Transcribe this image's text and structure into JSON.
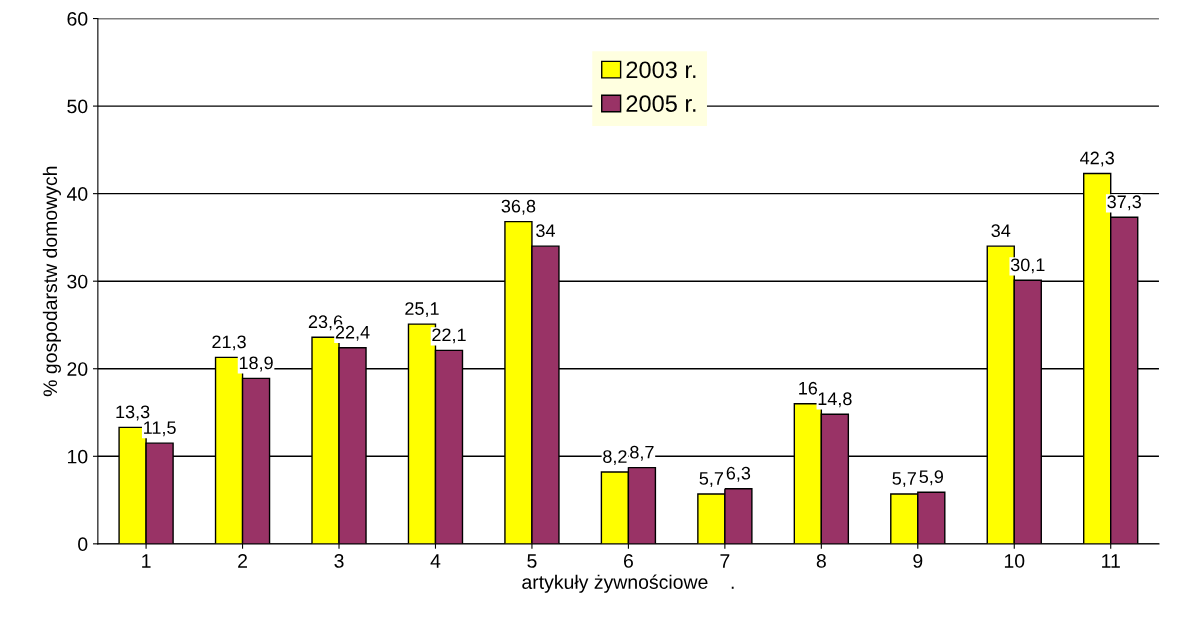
{
  "chart_data": {
    "type": "bar",
    "xlabel": "artykuły żywnościowe    .",
    "ylabel": "% gospodarstw domowych",
    "categories": [
      "1",
      "2",
      "3",
      "4",
      "5",
      "6",
      "7",
      "8",
      "9",
      "10",
      "11"
    ],
    "series": [
      {
        "name": "2003 r.",
        "color": "#ffff00",
        "values": [
          13.3,
          21.3,
          23.6,
          25.1,
          36.8,
          8.2,
          5.7,
          16,
          5.7,
          34,
          42.3
        ],
        "value_labels": [
          "13,3",
          "21,3",
          "23,6",
          "25,1",
          "36,8",
          "8,2",
          "5,7",
          "16",
          "5,7",
          "34",
          "42,3"
        ]
      },
      {
        "name": "2005 r.",
        "color": "#993366",
        "values": [
          11.5,
          18.9,
          22.4,
          22.1,
          34,
          8.7,
          6.3,
          14.8,
          5.9,
          30.1,
          37.3
        ],
        "value_labels": [
          "11,5",
          "18,9",
          "22,4",
          "22,1",
          "34",
          "8,7",
          "6,3",
          "14,8",
          "5,9",
          "30,1",
          "37,3"
        ]
      }
    ],
    "ylim": [
      0,
      60
    ],
    "yticks": [
      0,
      10,
      20,
      30,
      40,
      50,
      60
    ],
    "grid": "y",
    "legend": "top"
  }
}
